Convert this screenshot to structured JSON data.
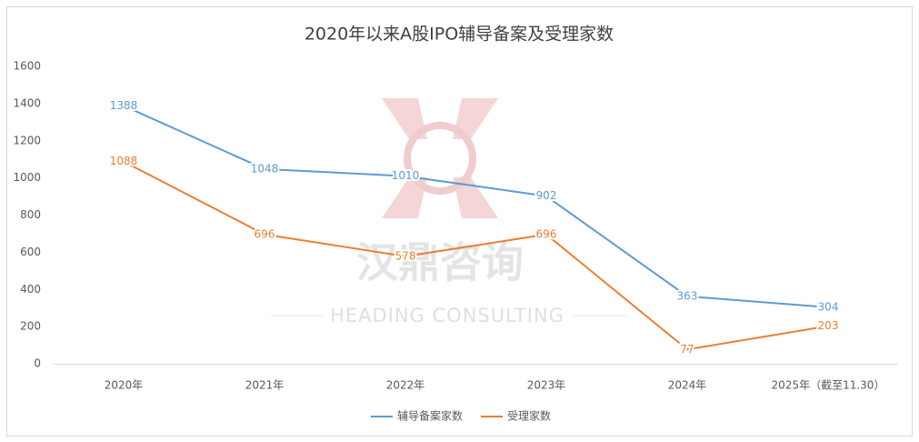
{
  "chart_data": {
    "type": "line",
    "title": "2020年以来A股IPO辅导备案及受理家数",
    "categories": [
      "2020年",
      "2021年",
      "2022年",
      "2023年",
      "2024年",
      "2025年（截至11.30）"
    ],
    "series": [
      {
        "name": "辅导备案家数",
        "color": "#5b9bd5",
        "values": [
          1388,
          1048,
          1010,
          902,
          363,
          304
        ]
      },
      {
        "name": "受理家数",
        "color": "#ed7d31",
        "values": [
          1088,
          696,
          578,
          696,
          77,
          203
        ]
      }
    ],
    "ylim": [
      0,
      1600
    ],
    "yticks": [
      0,
      200,
      400,
      600,
      800,
      1000,
      1200,
      1400,
      1600
    ],
    "grid": false,
    "legend": "bottom",
    "watermark": {
      "cn": "汉鼎咨询",
      "en": "HEADING CONSULTING"
    }
  }
}
